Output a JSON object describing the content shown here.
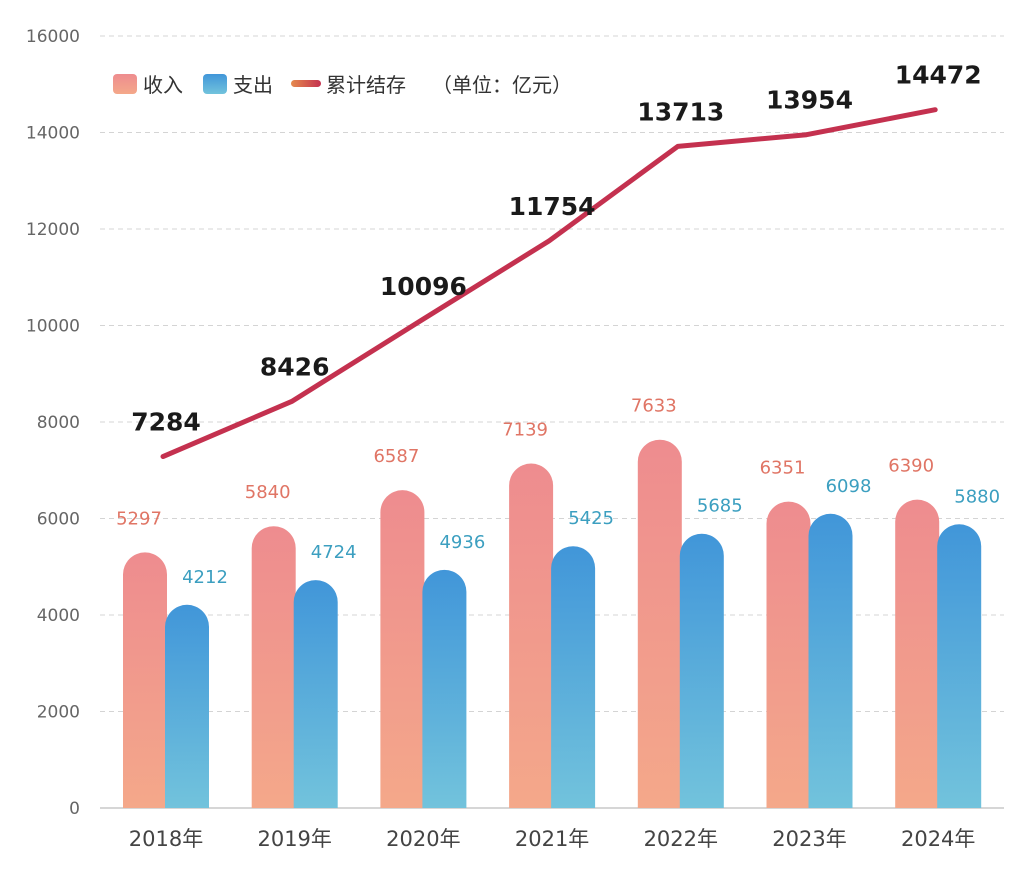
{
  "chart_data": {
    "type": "bar",
    "categories": [
      "2018年",
      "2019年",
      "2020年",
      "2021年",
      "2022年",
      "2023年",
      "2024年"
    ],
    "series": [
      {
        "name": "收入",
        "kind": "bar",
        "values": [
          5297,
          5840,
          6587,
          7139,
          7633,
          6351,
          6390
        ]
      },
      {
        "name": "支出",
        "kind": "bar",
        "values": [
          4212,
          4724,
          4936,
          5425,
          5685,
          6098,
          5880
        ]
      },
      {
        "name": "累计结存",
        "kind": "line",
        "values": [
          7284,
          8426,
          10096,
          11754,
          13713,
          13954,
          14472
        ]
      }
    ],
    "unit_note": "（单位：亿元）",
    "ylim": [
      0,
      16000
    ],
    "yticks": [
      0,
      2000,
      4000,
      6000,
      8000,
      10000,
      12000,
      14000,
      16000
    ],
    "grid": true,
    "legend_position": "top-left",
    "colors": {
      "income_top": "#EE8C8F",
      "income_bottom": "#F4A88A",
      "expense_top": "#4196D9",
      "expense_bottom": "#72C3DC",
      "line": "#C4314F",
      "income_label": "#E07565",
      "expense_label": "#3C9FC0"
    }
  }
}
